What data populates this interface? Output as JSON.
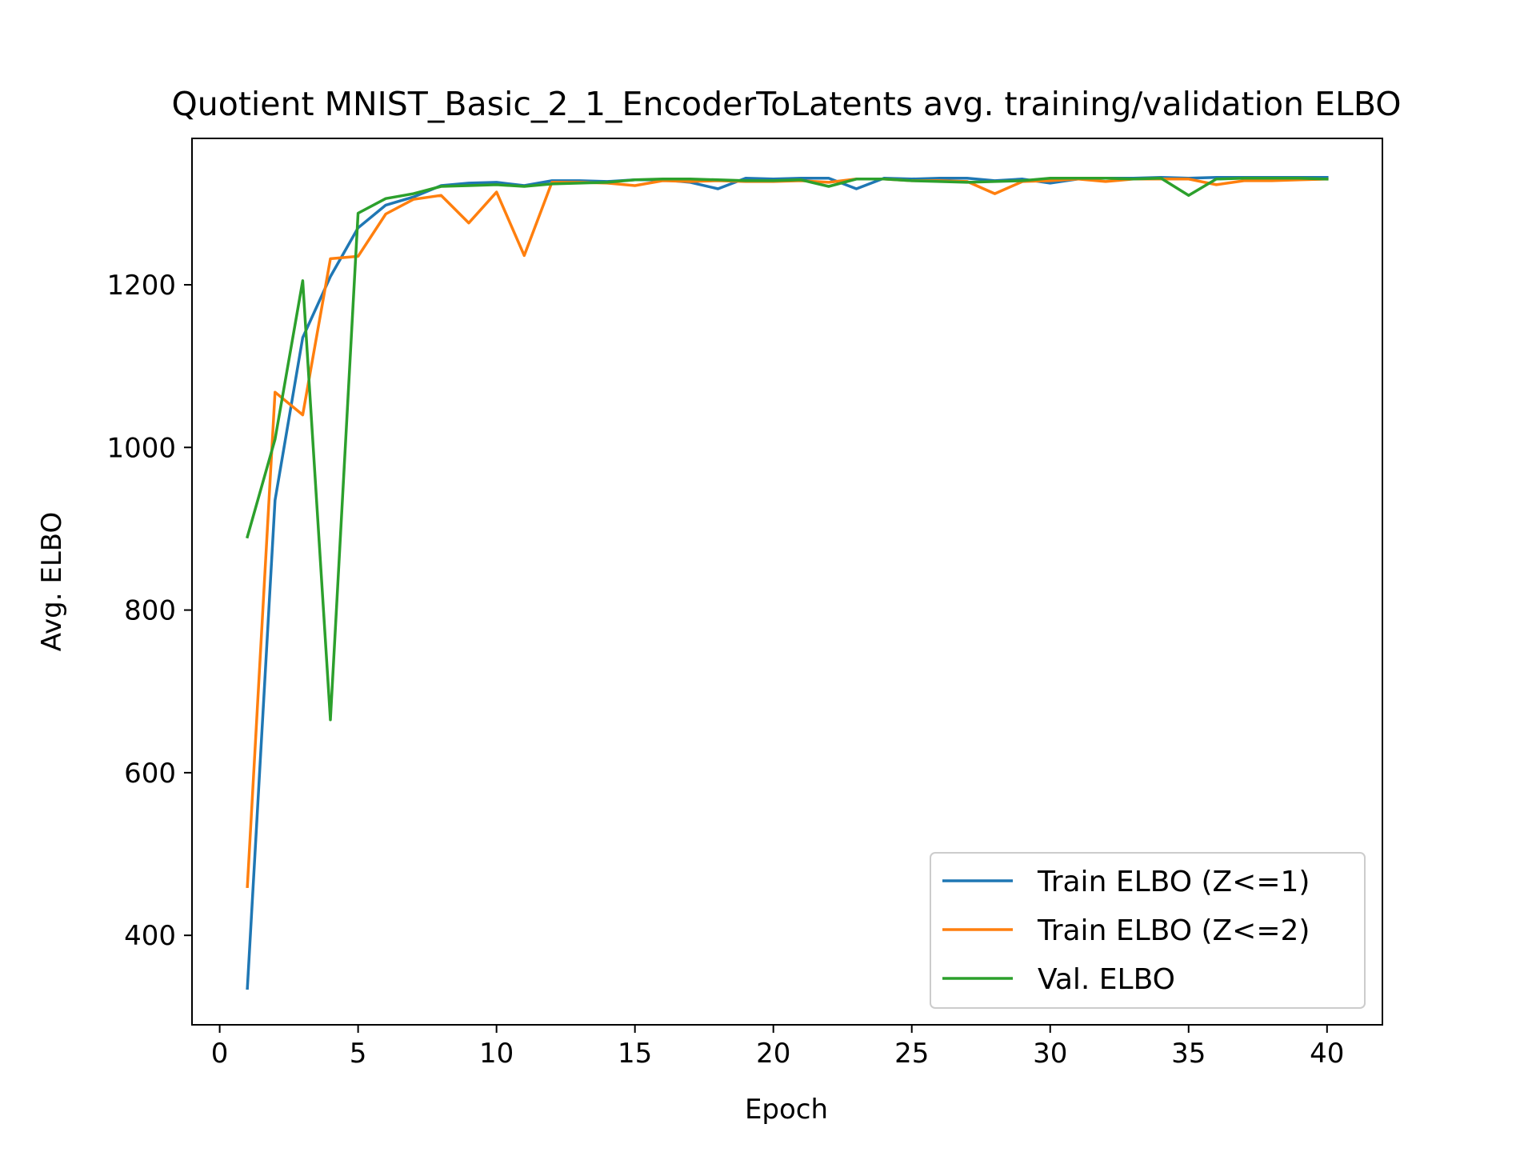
{
  "chart_data": {
    "type": "line",
    "title": "Quotient MNIST_Basic_2_1_EncoderToLatents avg. training/validation ELBO",
    "xlabel": "Epoch",
    "ylabel": "Avg. ELBO",
    "xlim": [
      -1,
      42
    ],
    "ylim": [
      290,
      1380
    ],
    "xticks": [
      0,
      5,
      10,
      15,
      20,
      25,
      30,
      35,
      40
    ],
    "yticks": [
      400,
      600,
      800,
      1000,
      1200
    ],
    "grid": false,
    "legend_position": "lower right",
    "x": [
      1,
      2,
      3,
      4,
      5,
      6,
      7,
      8,
      9,
      10,
      11,
      12,
      13,
      14,
      15,
      16,
      17,
      18,
      19,
      20,
      21,
      22,
      23,
      24,
      25,
      26,
      27,
      28,
      29,
      30,
      31,
      32,
      33,
      34,
      35,
      36,
      37,
      38,
      39,
      40
    ],
    "series": [
      {
        "name": "Train ELBO (Z<=1)",
        "color": "#1f77b4",
        "values": [
          335,
          935,
          1135,
          1210,
          1270,
          1298,
          1308,
          1322,
          1325,
          1326,
          1322,
          1328,
          1328,
          1327,
          1329,
          1329,
          1326,
          1318,
          1331,
          1330,
          1331,
          1331,
          1318,
          1331,
          1330,
          1331,
          1331,
          1328,
          1330,
          1325,
          1330,
          1331,
          1331,
          1332,
          1331,
          1332,
          1332,
          1332,
          1332,
          1332
        ]
      },
      {
        "name": "Train ELBO (Z<=2)",
        "color": "#ff7f0e",
        "values": [
          460,
          1068,
          1040,
          1232,
          1235,
          1287,
          1305,
          1310,
          1276,
          1314,
          1236,
          1326,
          1326,
          1325,
          1322,
          1328,
          1327,
          1328,
          1327,
          1327,
          1328,
          1326,
          1330,
          1330,
          1328,
          1328,
          1327,
          1312,
          1327,
          1328,
          1330,
          1327,
          1330,
          1330,
          1330,
          1323,
          1328,
          1328,
          1329,
          1330
        ]
      },
      {
        "name": "Val. ELBO",
        "color": "#2ca02c",
        "values": [
          890,
          1010,
          1205,
          665,
          1288,
          1306,
          1312,
          1321,
          1322,
          1323,
          1321,
          1324,
          1325,
          1326,
          1329,
          1330,
          1330,
          1329,
          1328,
          1328,
          1329,
          1321,
          1330,
          1330,
          1328,
          1327,
          1326,
          1327,
          1328,
          1331,
          1331,
          1331,
          1330,
          1331,
          1310,
          1330,
          1331,
          1331,
          1331,
          1330
        ]
      }
    ]
  }
}
